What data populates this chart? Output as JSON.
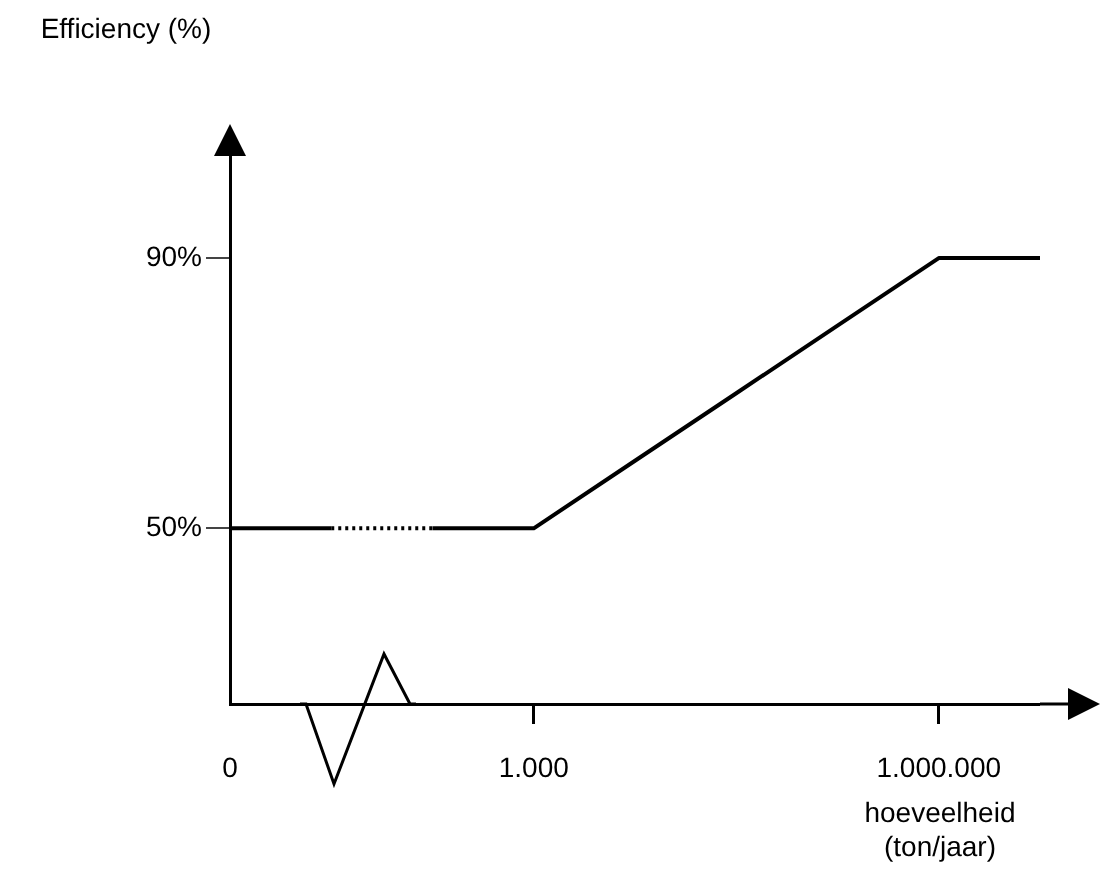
{
  "chart_data": {
    "type": "line",
    "ylabel": "Efficiency (%)",
    "xlabel": "hoeveelheid (ton/jaar)",
    "categories": [
      "0",
      null,
      null,
      "1.000",
      null,
      null,
      null,
      "1.000.000",
      null
    ],
    "series": [
      {
        "color": "#000000",
        "line_style": "solid",
        "values": [
          50,
          50,
          null,
          null,
          null,
          null,
          null,
          null,
          null
        ]
      },
      {
        "color": "#000000",
        "line_style": "dotted",
        "values": [
          null,
          50,
          50,
          null,
          null,
          null,
          null,
          null,
          null
        ]
      },
      {
        "color": "#000000",
        "line_style": "solid",
        "values": [
          null,
          null,
          50,
          50,
          60,
          70,
          80,
          90,
          90
        ]
      }
    ],
    "ylim": [
      24,
      106
    ],
    "yticks": [
      {
        "value": 50,
        "label": "50%"
      },
      {
        "value": 90,
        "label": "90%"
      }
    ],
    "grid": false,
    "legend": false,
    "marker": "none"
  }
}
